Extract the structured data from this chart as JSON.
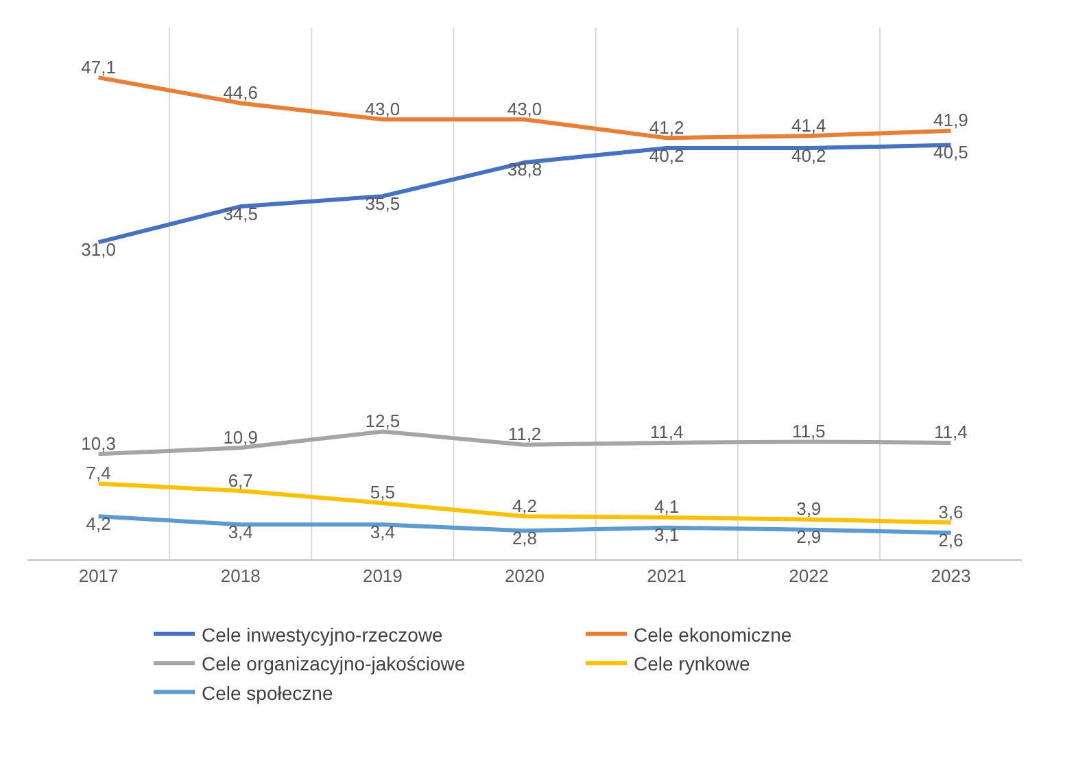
{
  "chart_data": {
    "type": "line",
    "categories": [
      "2017",
      "2018",
      "2019",
      "2020",
      "2021",
      "2022",
      "2023"
    ],
    "ylim": [
      0,
      52
    ],
    "grid": "x",
    "legend": "bottom",
    "marker": "none",
    "line_style": "solid",
    "tick_labels": "x",
    "series": [
      {
        "name": "Cele inwestycyjno-rzeczowe",
        "color": "#4472c4",
        "values": [
          31.0,
          34.5,
          35.5,
          38.8,
          40.2,
          40.2,
          40.5
        ],
        "value_labels": [
          "31,0",
          "34,5",
          "35,5",
          "38,8",
          "40,2",
          "40,2",
          "40,5"
        ]
      },
      {
        "name": "Cele ekonomiczne",
        "color": "#ed7d31",
        "values": [
          47.1,
          44.6,
          43.0,
          43.0,
          41.2,
          41.4,
          41.9
        ],
        "value_labels": [
          "47,1",
          "44,6",
          "43,0",
          "43,0",
          "41,2",
          "41,4",
          "41,9"
        ]
      },
      {
        "name": "Cele organizacyjno-jakościowe",
        "color": "#a5a5a5",
        "values": [
          10.3,
          10.9,
          12.5,
          11.2,
          11.4,
          11.5,
          11.4
        ],
        "value_labels": [
          "10,3",
          "10,9",
          "12,5",
          "11,2",
          "11,4",
          "11,5",
          "11,4"
        ]
      },
      {
        "name": "Cele rynkowe",
        "color": "#ffc000",
        "values": [
          7.4,
          6.7,
          5.5,
          4.2,
          4.1,
          3.9,
          3.6
        ],
        "value_labels": [
          "7,4",
          "6,7",
          "5,5",
          "4,2",
          "4,1",
          "3,9",
          "3,6"
        ]
      },
      {
        "name": "Cele społeczne",
        "color": "#5b9bd5",
        "values": [
          4.2,
          3.4,
          3.4,
          2.8,
          3.1,
          2.9,
          2.6
        ],
        "value_labels": [
          "4,2",
          "3,4",
          "3,4",
          "2,8",
          "3,1",
          "2,9",
          "2,6"
        ]
      }
    ]
  }
}
